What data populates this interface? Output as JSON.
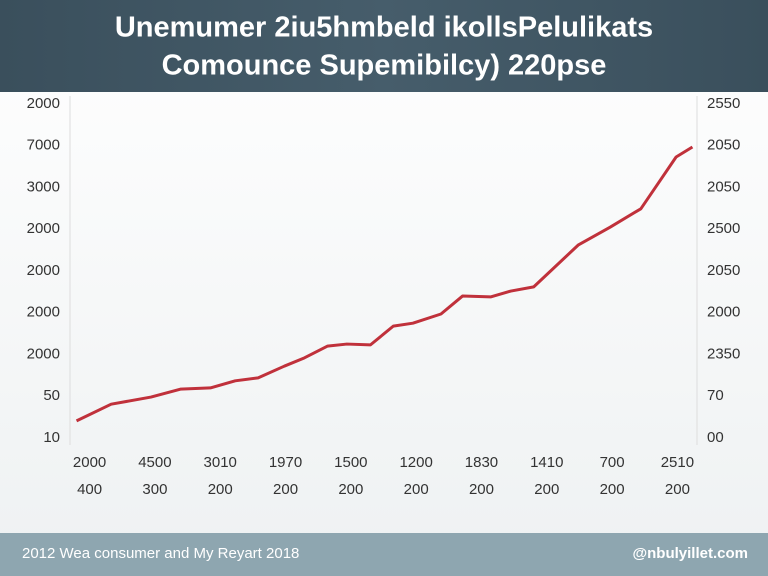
{
  "chart_data": {
    "type": "line",
    "title": "Unemumer 2iu5hmbeld ikollsPelulikats",
    "subtitle": "Comounce Supemibilcy) 220pse",
    "categories": [
      "2000",
      "4500",
      "3010",
      "1970",
      "1500",
      "1200",
      "1830",
      "1410",
      "700",
      "2510"
    ],
    "category_sublabels": [
      "400",
      "300",
      "200",
      "200",
      "200",
      "200",
      "200",
      "200",
      "200",
      "200"
    ],
    "xlim": [
      -0.3,
      9.3
    ],
    "series": [
      {
        "color": "#c0313b",
        "x": [
          -0.2,
          0.33,
          0.94,
          1.39,
          1.85,
          2.23,
          2.58,
          2.98,
          3.29,
          3.64,
          3.94,
          4.3,
          4.65,
          4.95,
          5.38,
          5.71,
          6.14,
          6.45,
          6.8,
          7.48,
          7.97,
          8.44,
          8.71,
          8.98,
          9.23
        ],
        "values": [
          0.41,
          0.81,
          0.98,
          1.17,
          1.2,
          1.37,
          1.44,
          1.72,
          1.92,
          2.2,
          2.25,
          2.23,
          2.68,
          2.75,
          2.97,
          3.4,
          3.38,
          3.52,
          3.62,
          4.62,
          5.05,
          5.49,
          6.11,
          6.73,
          6.97
        ]
      }
    ],
    "ylim": [
      0,
      8
    ],
    "yticks": [
      {
        "value": 0,
        "label": "10"
      },
      {
        "value": 1,
        "label": "50"
      },
      {
        "value": 2,
        "label": "2000"
      },
      {
        "value": 3,
        "label": "2000"
      },
      {
        "value": 4,
        "label": "2000"
      },
      {
        "value": 5,
        "label": "2000"
      },
      {
        "value": 6,
        "label": "3000"
      },
      {
        "value": 7,
        "label": "7000"
      },
      {
        "value": 8,
        "label": "2000"
      }
    ],
    "y2lim": [
      0,
      8
    ],
    "y2ticks": [
      {
        "value": 0,
        "label": "00"
      },
      {
        "value": 1,
        "label": "70"
      },
      {
        "value": 2,
        "label": "2350"
      },
      {
        "value": 3,
        "label": "2000"
      },
      {
        "value": 4,
        "label": "2050"
      },
      {
        "value": 5,
        "label": "2500"
      },
      {
        "value": 6,
        "label": "2050"
      },
      {
        "value": 7,
        "label": "2050"
      },
      {
        "value": 8,
        "label": "2550"
      }
    ],
    "grid": false,
    "footer_left": "2012 Wea consumer and My Reyart 2018",
    "footer_right": "@nbulyillet.com"
  }
}
